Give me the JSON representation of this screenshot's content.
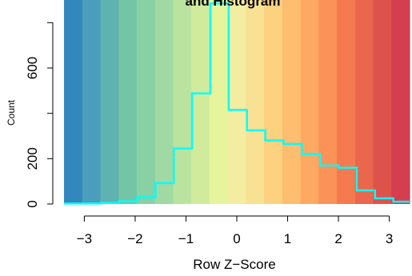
{
  "chart_data": {
    "type": "bar",
    "title": "and Histogram",
    "xlabel": "Row Z−Score",
    "ylabel": "Count",
    "xlim": [
      -3.4,
      3.4
    ],
    "ylim": [
      0,
      900
    ],
    "x_ticks": [
      -3,
      -2,
      -1,
      0,
      1,
      2,
      3
    ],
    "x_tick_labels": [
      "−3",
      "−2",
      "−1",
      "0",
      "1",
      "2",
      "3"
    ],
    "y_ticks": [
      0,
      200,
      400,
      600,
      800
    ],
    "y_tick_labels": [
      "0",
      "200",
      "",
      "600",
      ""
    ],
    "color_key_bands": [
      "#3288bd",
      "#4a9dbb",
      "#5eb3b0",
      "#73c5a5",
      "#89d0a4",
      "#a0d9a3",
      "#bae3a0",
      "#d1eb9d",
      "#e6f59b",
      "#f2eda0",
      "#f8e193",
      "#fcd17f",
      "#fdbe6f",
      "#fda962",
      "#fb9258",
      "#f67a4f",
      "#ea664c",
      "#dd524b",
      "#d53e4f"
    ],
    "histogram": {
      "color": "#00ffff",
      "bin_edges": [
        -3.4,
        -3.04,
        -2.68,
        -2.32,
        -1.96,
        -1.6,
        -1.24,
        -0.88,
        -0.52,
        -0.16,
        0.2,
        0.56,
        0.92,
        1.28,
        1.64,
        2.0,
        2.36,
        2.72,
        3.08,
        3.4
      ],
      "counts": [
        2,
        2,
        5,
        12,
        30,
        92,
        245,
        488,
        885,
        415,
        325,
        280,
        265,
        220,
        170,
        160,
        60,
        25,
        10
      ]
    }
  }
}
